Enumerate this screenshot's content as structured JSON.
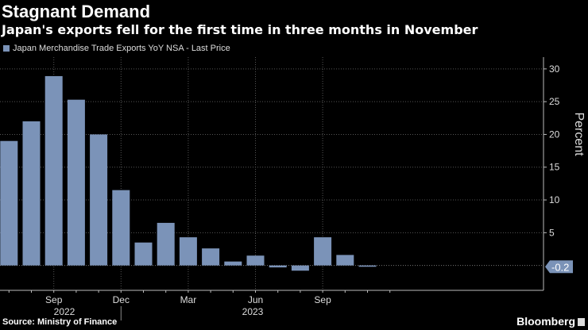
{
  "header": {
    "title": "Stagnant Demand",
    "subtitle": "Japan's exports fell for the first time in three months in November"
  },
  "footer": {
    "source": "Source: Ministry of Finance",
    "brand": "Bloomberg"
  },
  "chart_data": {
    "type": "bar",
    "title": "Stagnant Demand",
    "subtitle": "Japan's exports fell for the first time in three months in November",
    "categories": [
      "Jul 2022",
      "Aug 2022",
      "Sep 2022",
      "Oct 2022",
      "Nov 2022",
      "Dec 2022",
      "Jan 2023",
      "Feb 2023",
      "Mar 2023",
      "Apr 2023",
      "May 2023",
      "Jun 2023",
      "Jul 2023",
      "Aug 2023",
      "Sep 2023",
      "Oct 2023",
      "Nov 2023"
    ],
    "series": [
      {
        "name": "Japan Merchandise Trade Exports YoY NSA - Last Price",
        "values": [
          19.0,
          22.0,
          28.9,
          25.3,
          20.0,
          11.5,
          3.5,
          6.5,
          4.3,
          2.6,
          0.6,
          1.5,
          -0.3,
          -0.8,
          4.3,
          1.6,
          -0.2
        ],
        "color": "#7b93b8"
      }
    ],
    "ylabel": "Percent",
    "ylim": [
      -3.8,
      31.8
    ],
    "y_ticks": [
      5,
      10,
      15,
      20,
      25,
      30
    ],
    "y_tick_labels": [
      "5",
      "10",
      "15",
      "20",
      "25",
      "30"
    ],
    "x_tick_labels": [
      {
        "category": "Sep 2022",
        "label": "Sep"
      },
      {
        "category": "Dec 2022",
        "label": "Dec"
      },
      {
        "category": "Mar 2023",
        "label": "Mar"
      },
      {
        "category": "Jun 2023",
        "label": "Jun"
      },
      {
        "category": "Sep 2023",
        "label": "Sep"
      }
    ],
    "year_labels": [
      {
        "label": "2022",
        "from": "Jul 2022",
        "to": "Dec 2022"
      },
      {
        "label": "2023",
        "from": "Dec 2022",
        "to": "Nov 2023"
      }
    ],
    "last_value_label": "-0.2",
    "axis_position": "right",
    "grid": true,
    "legend_position": "top-left",
    "background": "#000000"
  }
}
